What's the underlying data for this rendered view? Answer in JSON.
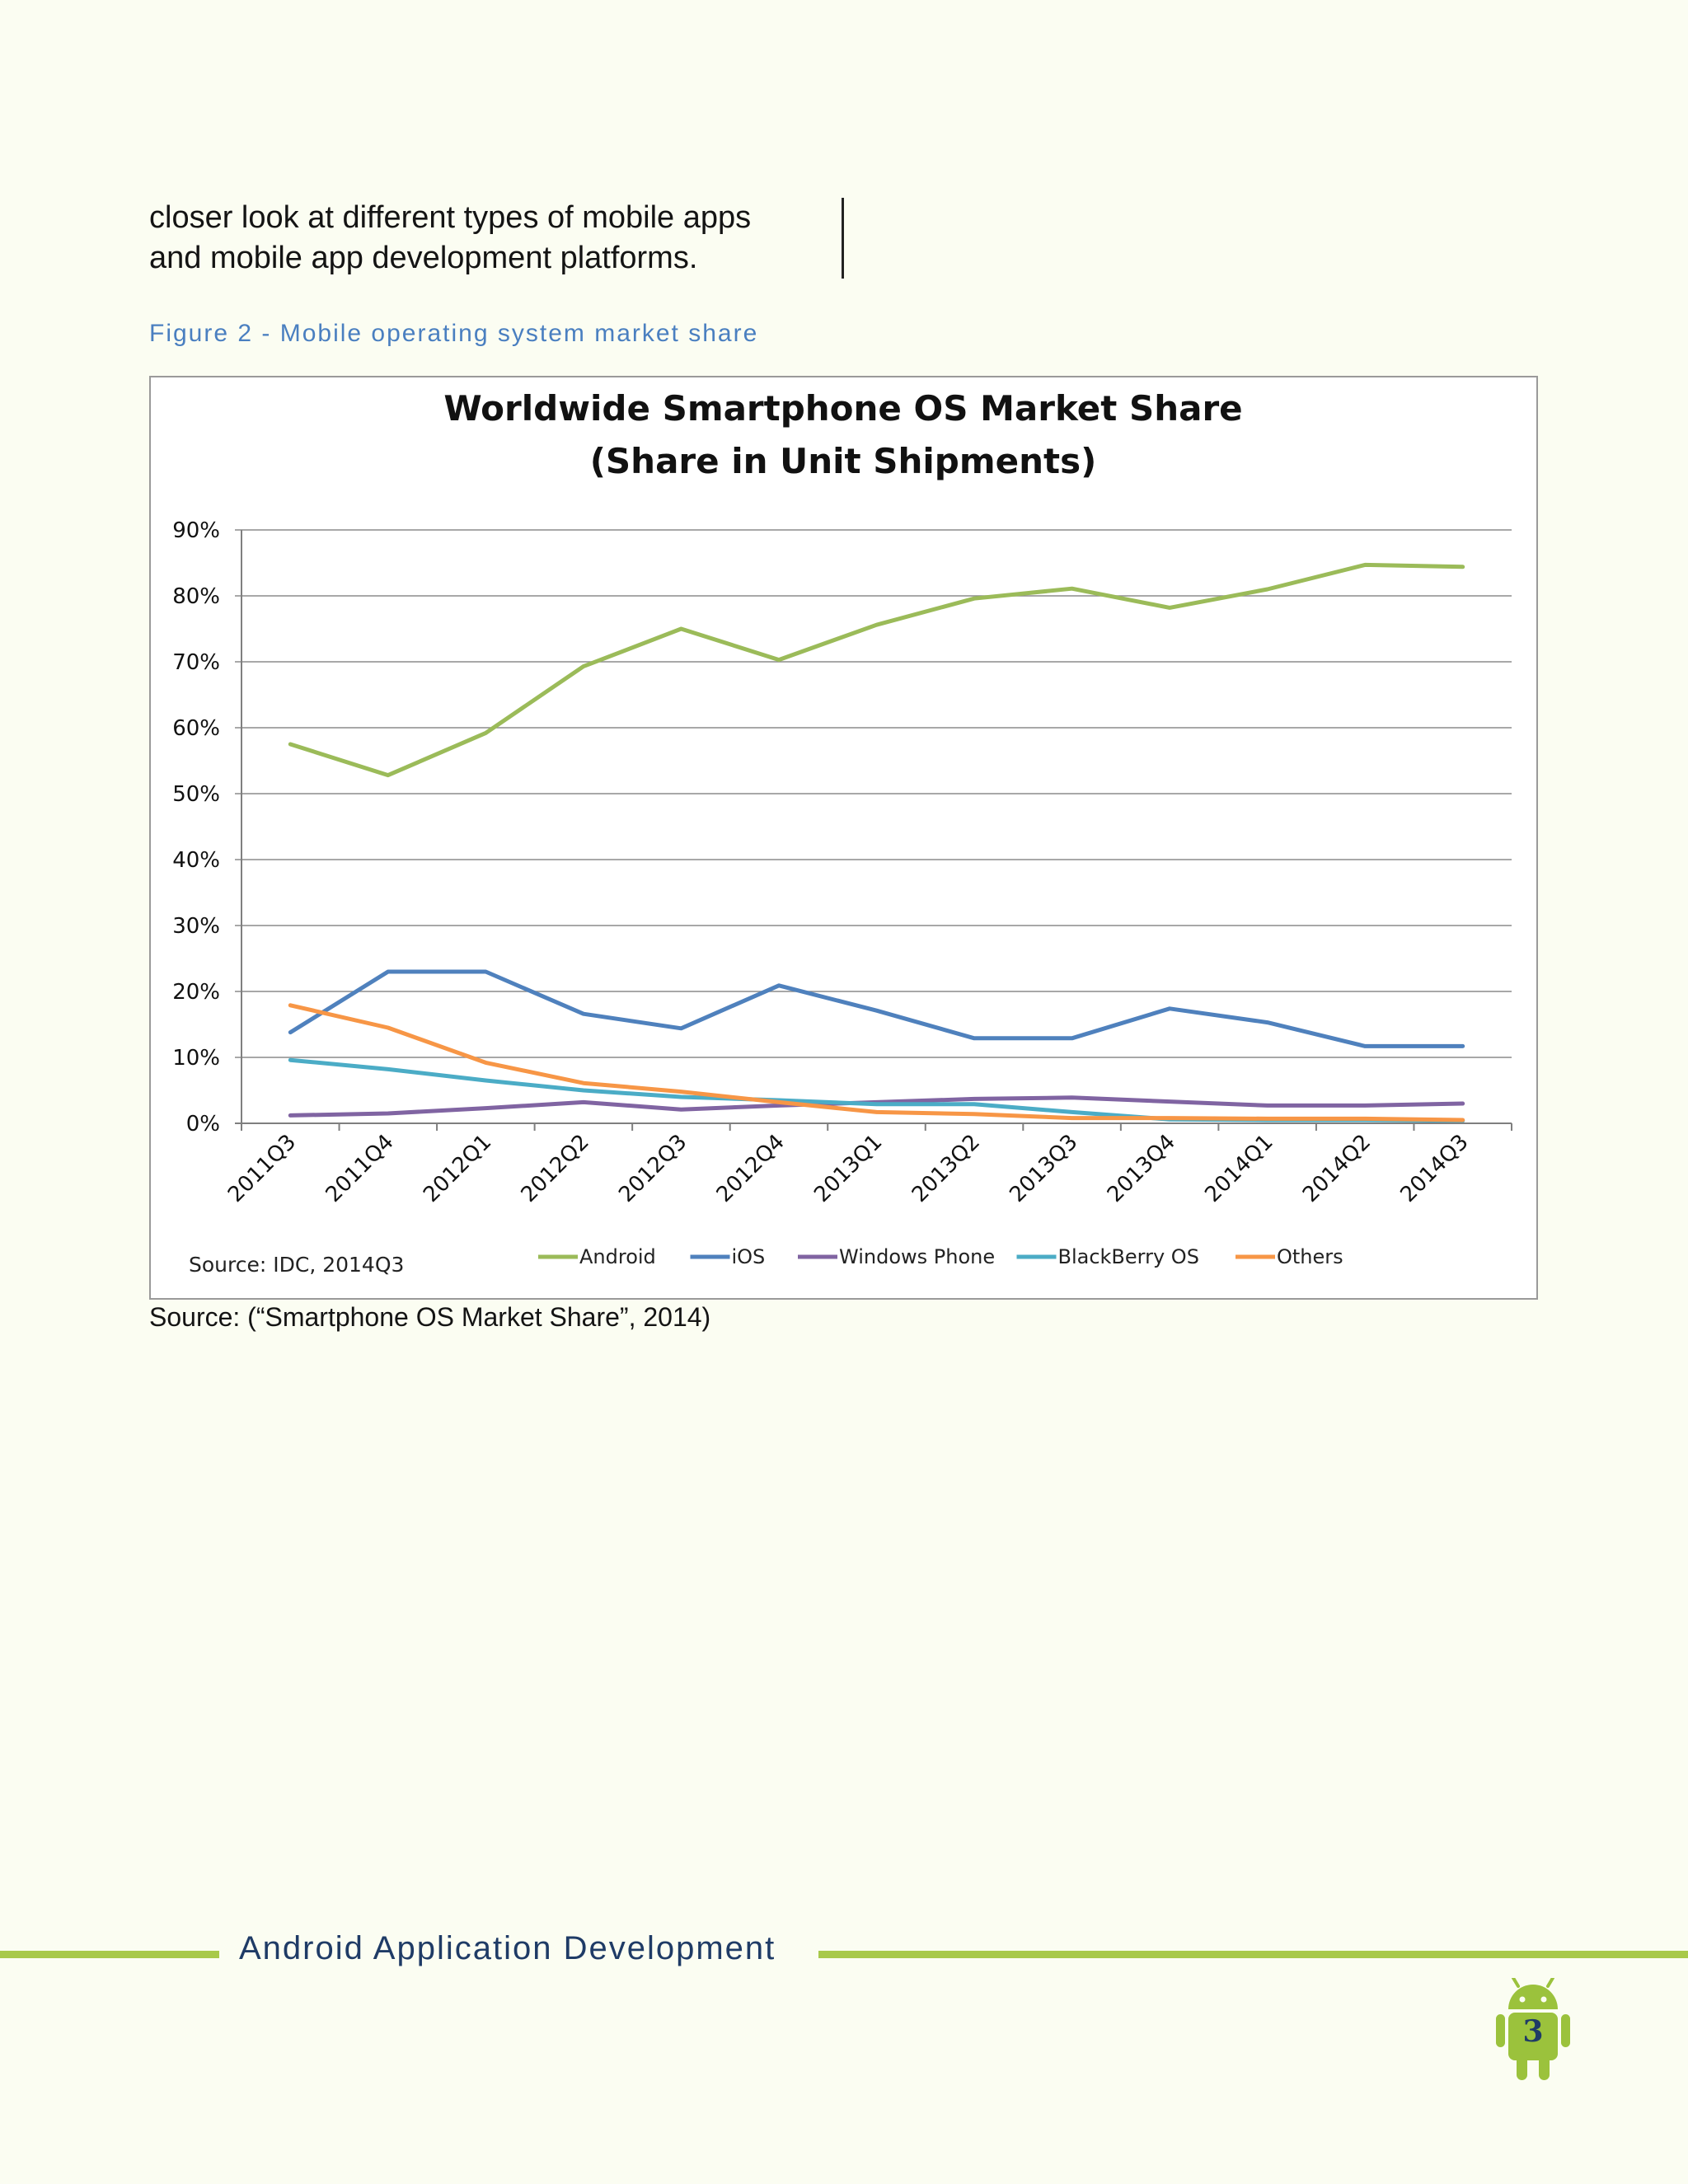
{
  "document": {
    "intro_lines": [
      "closer look at different types of mobile apps",
      "and mobile app development platforms."
    ],
    "figure_caption": "Figure 2 - Mobile operating system market share",
    "source_line": "Source: (“Smartphone OS Market Share”, 2014)"
  },
  "footer": {
    "title": "Android Application Development",
    "page_number": "3",
    "badge_icon": "android-robot-icon",
    "accent_color": "#a8c94a"
  },
  "chart_data": {
    "type": "line",
    "title_lines": [
      "Worldwide Smartphone OS Market Share",
      "(Share in Unit Shipments)"
    ],
    "source_note": "Source: IDC, 2014Q3",
    "ylim": [
      0,
      90
    ],
    "yticks": [
      "0%",
      "10%",
      "20%",
      "30%",
      "40%",
      "50%",
      "60%",
      "70%",
      "80%",
      "90%"
    ],
    "grid": true,
    "legend_position": "bottom",
    "categories": [
      "2011Q3",
      "2011Q4",
      "2012Q1",
      "2012Q2",
      "2012Q3",
      "2012Q4",
      "2013Q1",
      "2013Q2",
      "2013Q3",
      "2013Q4",
      "2014Q1",
      "2014Q2",
      "2014Q3"
    ],
    "series": [
      {
        "name": "Android",
        "color": "#9bbb59",
        "values": [
          57.5,
          52.8,
          59.2,
          69.3,
          75.0,
          70.3,
          75.6,
          79.6,
          81.1,
          78.2,
          81.0,
          84.7,
          84.4
        ]
      },
      {
        "name": "iOS",
        "color": "#4f81bd",
        "values": [
          13.8,
          23.0,
          23.0,
          16.6,
          14.4,
          20.9,
          17.1,
          12.9,
          12.9,
          17.4,
          15.3,
          11.7,
          11.7
        ]
      },
      {
        "name": "Windows Phone",
        "color": "#8064a2",
        "values": [
          1.2,
          1.5,
          2.3,
          3.2,
          2.1,
          2.7,
          3.2,
          3.7,
          3.9,
          3.3,
          2.7,
          2.7,
          3.0
        ]
      },
      {
        "name": "BlackBerry OS",
        "color": "#4bacc6",
        "values": [
          9.6,
          8.2,
          6.5,
          5.0,
          4.0,
          3.5,
          2.9,
          2.9,
          1.7,
          0.6,
          0.5,
          0.5,
          0.4
        ]
      },
      {
        "name": "Others",
        "color": "#f79646",
        "values": [
          17.9,
          14.5,
          9.2,
          6.1,
          4.8,
          3.2,
          1.7,
          1.4,
          0.8,
          0.8,
          0.7,
          0.7,
          0.5
        ]
      }
    ]
  }
}
